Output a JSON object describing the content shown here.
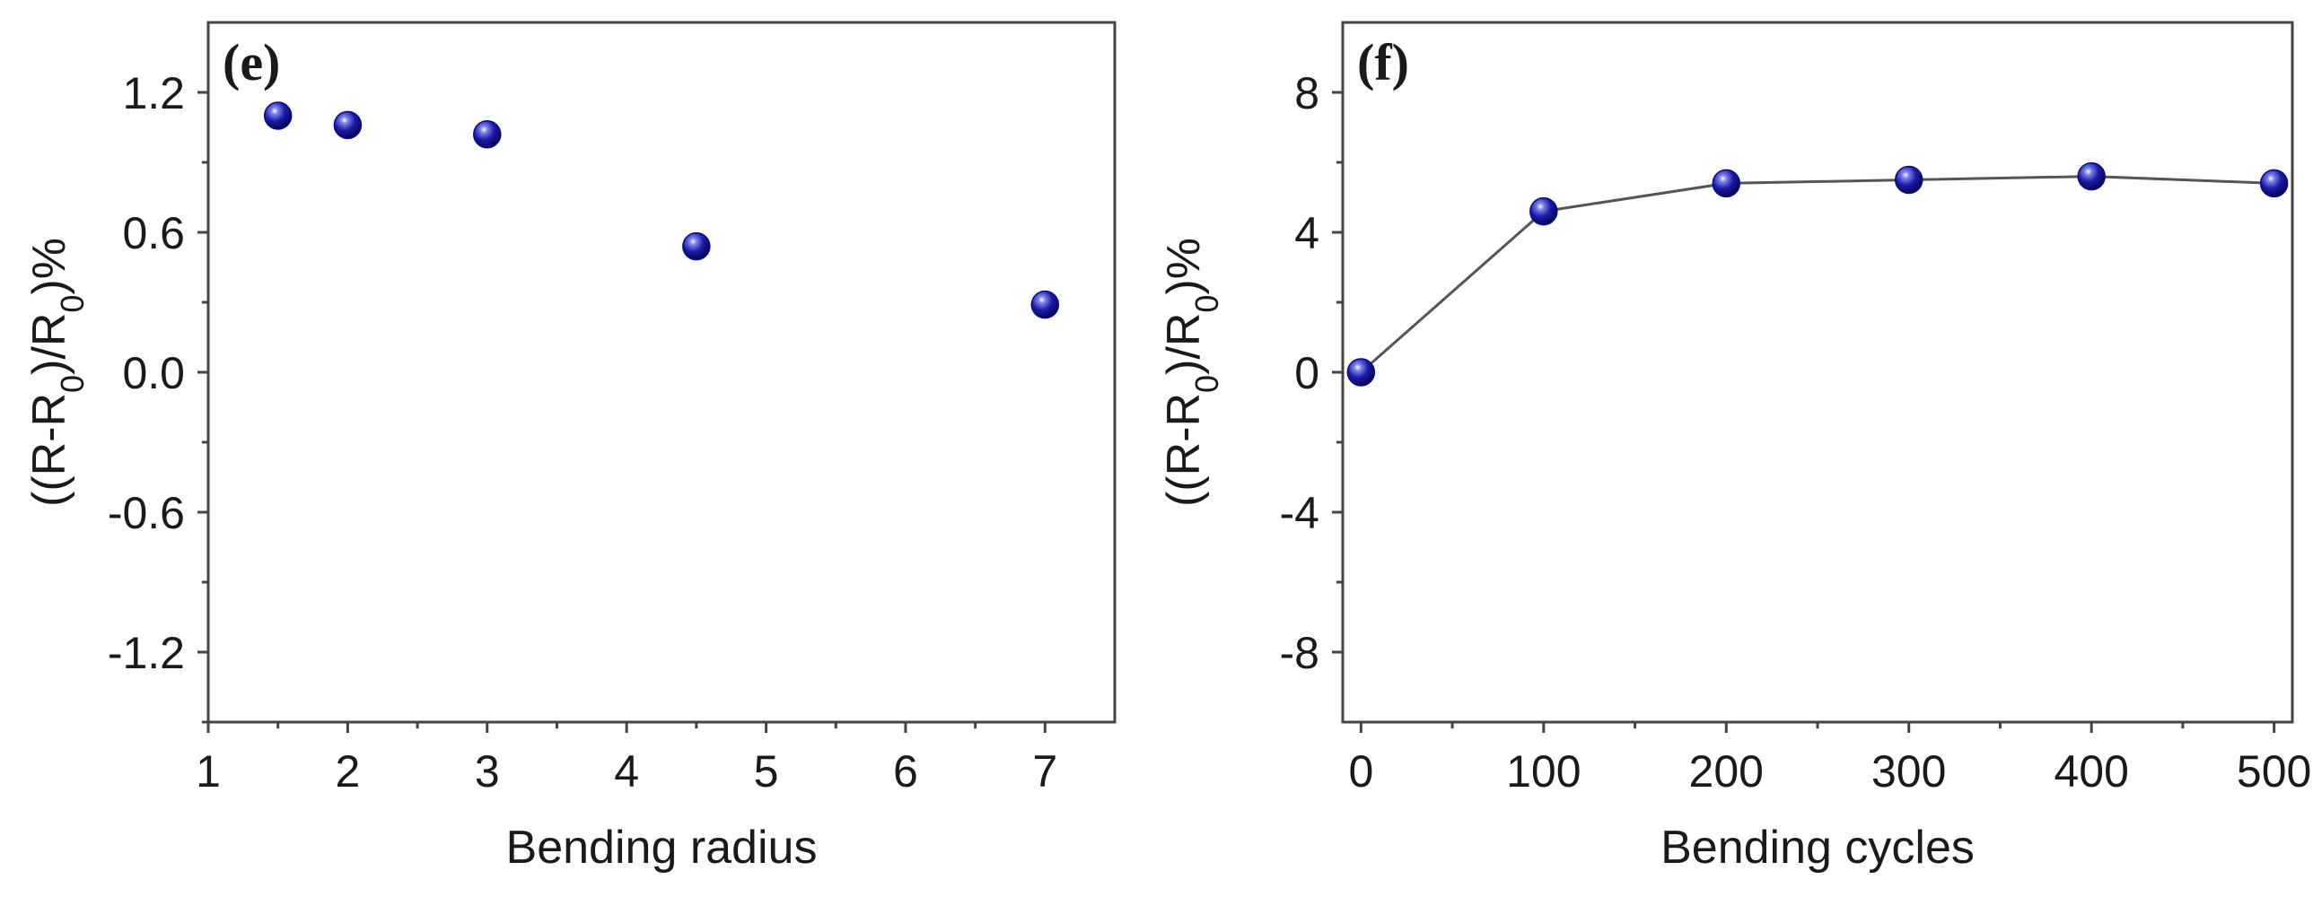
{
  "chart_data": [
    {
      "type": "scatter",
      "panel_label": "(e)",
      "xlabel": "Bending radius",
      "ylabel": "((R-R0)/R0)%",
      "xlim": [
        1,
        7.5
      ],
      "ylim": [
        -1.5,
        1.5
      ],
      "xticks": [
        1,
        2,
        3,
        4,
        5,
        6,
        7
      ],
      "yticks": [
        -1.2,
        -0.6,
        0.0,
        0.6,
        1.2
      ],
      "ytick_labels": [
        "-1.2",
        "-0.6",
        "0.0",
        "0.6",
        "1.2"
      ],
      "connected": false,
      "marker_color": "#0a0a8c",
      "x": [
        1.5,
        2,
        3,
        4.5,
        7
      ],
      "y": [
        1.1,
        1.06,
        1.02,
        0.54,
        0.29
      ]
    },
    {
      "type": "line",
      "panel_label": "(f)",
      "xlabel": "Bending cycles",
      "ylabel": "((R-R0)/R0)%",
      "xlim": [
        -10,
        510
      ],
      "ylim": [
        -10,
        10
      ],
      "xticks": [
        0,
        100,
        200,
        300,
        400,
        500
      ],
      "yticks": [
        -8,
        -4,
        0,
        4,
        8
      ],
      "ytick_labels": [
        "-8",
        "-4",
        "0",
        "4",
        "8"
      ],
      "connected": true,
      "marker_color": "#0a0a8c",
      "line_color": "#555555",
      "x": [
        0,
        100,
        200,
        300,
        400,
        500
      ],
      "y": [
        0,
        4.6,
        5.4,
        5.5,
        5.6,
        5.4
      ]
    }
  ]
}
